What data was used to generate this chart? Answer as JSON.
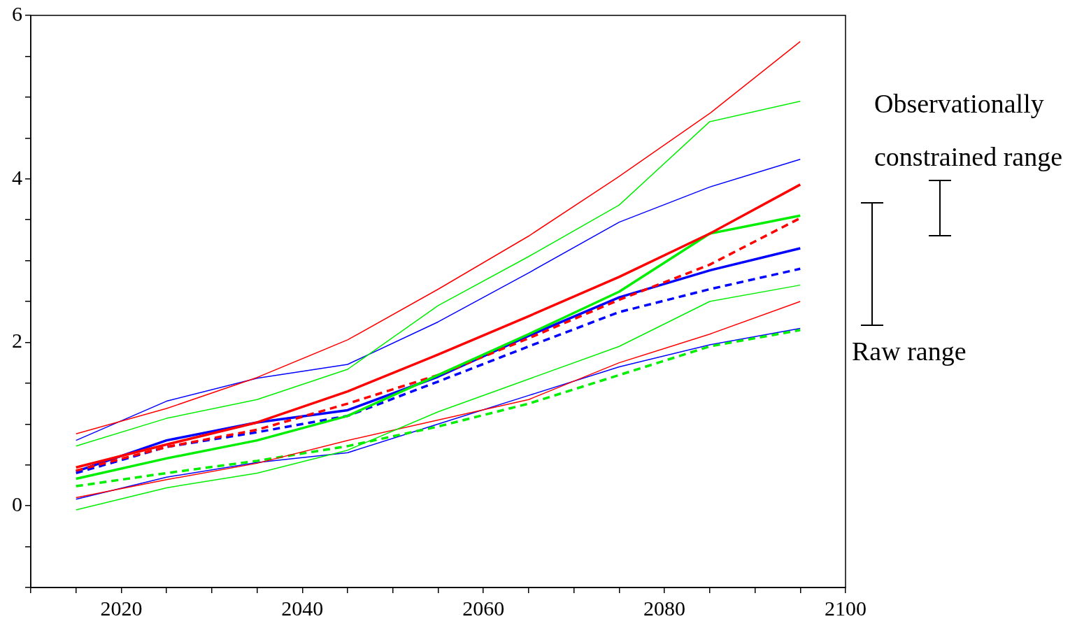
{
  "chart_data": {
    "type": "line",
    "x": [
      2015,
      2025,
      2035,
      2045,
      2055,
      2065,
      2075,
      2085,
      2095
    ],
    "series": [
      {
        "color": "#ff0000",
        "values": [
          0.88,
          1.19,
          1.57,
          2.03,
          2.65,
          3.3,
          4.03,
          4.8,
          5.68
        ]
      },
      {
        "color": "#00ee00",
        "values": [
          0.73,
          1.07,
          1.3,
          1.67,
          2.45,
          3.05,
          3.68,
          4.7,
          4.95
        ]
      },
      {
        "color": "#0000ff",
        "values": [
          0.8,
          1.28,
          1.56,
          1.73,
          2.25,
          2.85,
          3.47,
          3.9,
          4.24
        ]
      },
      {
        "color": "#ff0000",
        "values": [
          0.47,
          0.75,
          1.02,
          1.4,
          1.85,
          2.32,
          2.8,
          3.33,
          3.93
        ]
      },
      {
        "color": "#00ee00",
        "values": [
          0.33,
          0.58,
          0.8,
          1.1,
          1.6,
          2.1,
          2.62,
          3.33,
          3.55
        ]
      },
      {
        "color": "#ff0000",
        "line_style": "dashed",
        "values": [
          0.43,
          0.72,
          0.93,
          1.25,
          1.6,
          2.05,
          2.52,
          2.95,
          3.52
        ]
      },
      {
        "color": "#0000ff",
        "values": [
          0.42,
          0.8,
          1.02,
          1.17,
          1.58,
          2.08,
          2.55,
          2.88,
          3.15
        ]
      },
      {
        "color": "#0000ff",
        "line_style": "dashed",
        "values": [
          0.4,
          0.72,
          0.9,
          1.1,
          1.52,
          1.95,
          2.37,
          2.65,
          2.9
        ]
      },
      {
        "color": "#00ee00",
        "values": [
          -0.05,
          0.22,
          0.4,
          0.68,
          1.15,
          1.55,
          1.95,
          2.5,
          2.7
        ]
      },
      {
        "color": "#ff0000",
        "values": [
          0.1,
          0.32,
          0.52,
          0.8,
          1.05,
          1.3,
          1.75,
          2.1,
          2.5
        ]
      },
      {
        "color": "#00ee00",
        "line_style": "dashed",
        "values": [
          0.24,
          0.4,
          0.55,
          0.73,
          0.97,
          1.25,
          1.6,
          1.95,
          2.15
        ]
      },
      {
        "color": "#0000ff",
        "values": [
          0.08,
          0.35,
          0.53,
          0.65,
          1.0,
          1.35,
          1.7,
          1.97,
          2.17
        ]
      }
    ],
    "xlim": [
      2010,
      2100
    ],
    "xticks": [
      {
        "value": 2010,
        "label": null
      },
      {
        "value": 2015,
        "label": null
      },
      2020,
      {
        "value": 2025,
        "label": null
      },
      {
        "value": 2030,
        "label": null
      },
      {
        "value": 2035,
        "label": null
      },
      2040,
      {
        "value": 2045,
        "label": null
      },
      {
        "value": 2050,
        "label": null
      },
      {
        "value": 2055,
        "label": null
      },
      2060,
      {
        "value": 2065,
        "label": null
      },
      {
        "value": 2070,
        "label": null
      },
      {
        "value": 2075,
        "label": null
      },
      2080,
      {
        "value": 2085,
        "label": null
      },
      {
        "value": 2090,
        "label": null
      },
      {
        "value": 2095,
        "label": null
      },
      2100
    ],
    "ylim": [
      -1,
      6
    ],
    "yticks": [
      {
        "value": -1,
        "label": null
      },
      {
        "value": -0.5,
        "label": null
      },
      0,
      {
        "value": 0.5,
        "label": null
      },
      {
        "value": 1,
        "label": null
      },
      {
        "value": 1.5,
        "label": null
      },
      2,
      {
        "value": 2.5,
        "label": null
      },
      {
        "value": 3,
        "label": null
      },
      {
        "value": 3.5,
        "label": null
      },
      4,
      {
        "value": 4.5,
        "label": null
      },
      {
        "value": 5,
        "label": null
      },
      {
        "value": 5.5,
        "label": null
      },
      6
    ],
    "grid": false,
    "legend": false,
    "marker": "none",
    "line_style": "solid",
    "annotations": [
      "Observationally constrained range",
      "Raw range"
    ]
  }
}
